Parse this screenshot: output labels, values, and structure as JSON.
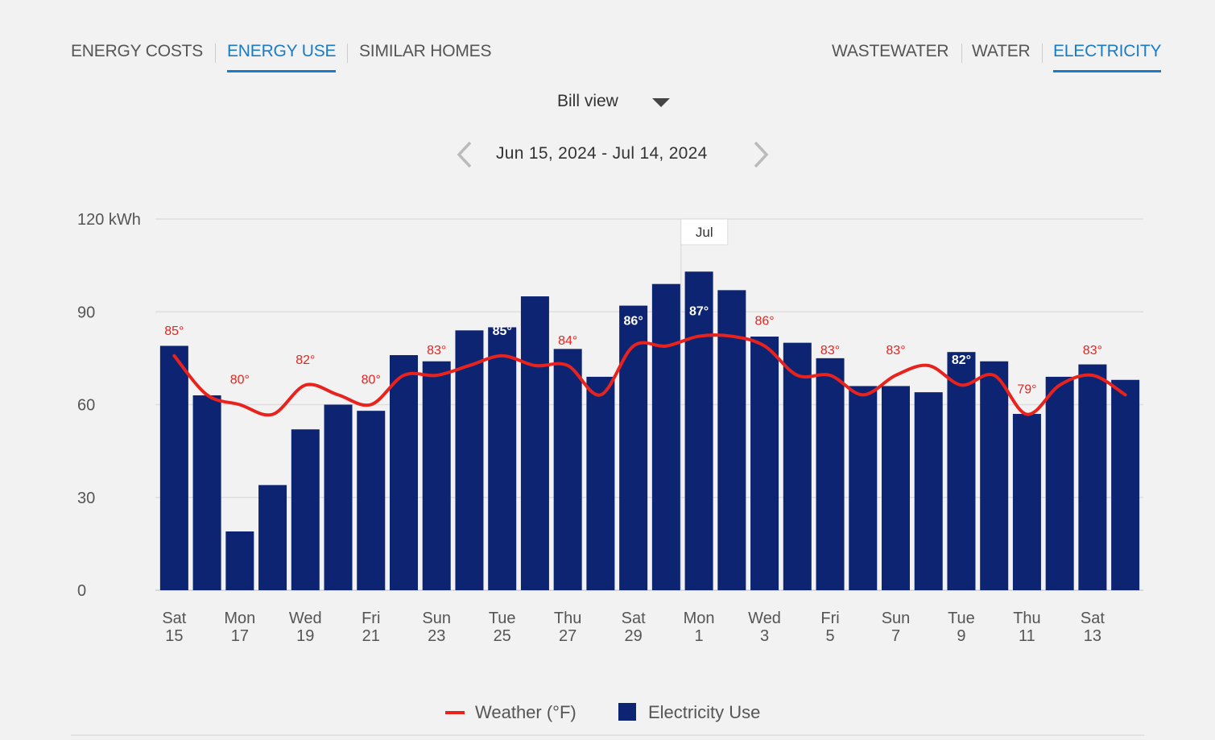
{
  "tabs": {
    "left": [
      "ENERGY COSTS",
      "ENERGY USE",
      "SIMILAR HOMES"
    ],
    "right": [
      "WASTEWATER",
      "WATER",
      "ELECTRICITY"
    ]
  },
  "view_selector": "Bill view",
  "date_range": "Jun 15, 2024 - Jul 14, 2024",
  "chart_data": {
    "type": "bar",
    "categories": [
      "Sat\n15",
      null,
      "Mon\n17",
      null,
      "Wed\n19",
      null,
      "Fri\n21",
      null,
      "Sun\n23",
      null,
      "Tue\n25",
      null,
      "Thu\n27",
      null,
      "Sat\n29",
      null,
      "Mon\n1",
      null,
      "Wed\n3",
      null,
      "Fri\n5",
      null,
      "Sun\n7",
      null,
      "Tue\n9",
      null,
      "Thu\n11",
      null,
      "Sat\n13",
      null
    ],
    "series": [
      {
        "name": "Electricity Use",
        "type": "bar",
        "color": "#0d2473",
        "values": [
          79,
          63,
          19,
          34,
          52,
          60,
          58,
          76,
          74,
          84,
          85,
          95,
          78,
          69,
          92,
          99,
          103,
          97,
          82,
          80,
          75,
          66,
          66,
          64,
          77,
          74,
          57,
          69,
          73,
          68
        ]
      },
      {
        "name": "Weather (°F)",
        "type": "line",
        "axis": "y2",
        "color": "#e8231e",
        "values": [
          85,
          81,
          80,
          79,
          82,
          81,
          80,
          83,
          83,
          84,
          85,
          84,
          84,
          81,
          86,
          86,
          87,
          87,
          86,
          83,
          83,
          81,
          83,
          84,
          82,
          83,
          79,
          82,
          83,
          81
        ],
        "value_labels": [
          "85°",
          null,
          "80°",
          null,
          "82°",
          null,
          "80°",
          null,
          "83°",
          null,
          "85°",
          null,
          "84°",
          null,
          "86°",
          null,
          "87°",
          null,
          "86°",
          null,
          "83°",
          null,
          "83°",
          null,
          "82°",
          null,
          "79°",
          null,
          "83°",
          null
        ]
      }
    ],
    "ylim": [
      0,
      120
    ],
    "yticks": [
      0,
      30,
      60,
      90,
      {
        "value": 120,
        "label": "120 kWh"
      }
    ],
    "y2lim": [
      61,
      99
    ],
    "grid": true,
    "annotation": {
      "label": "Jul",
      "category_index": 16
    }
  }
}
